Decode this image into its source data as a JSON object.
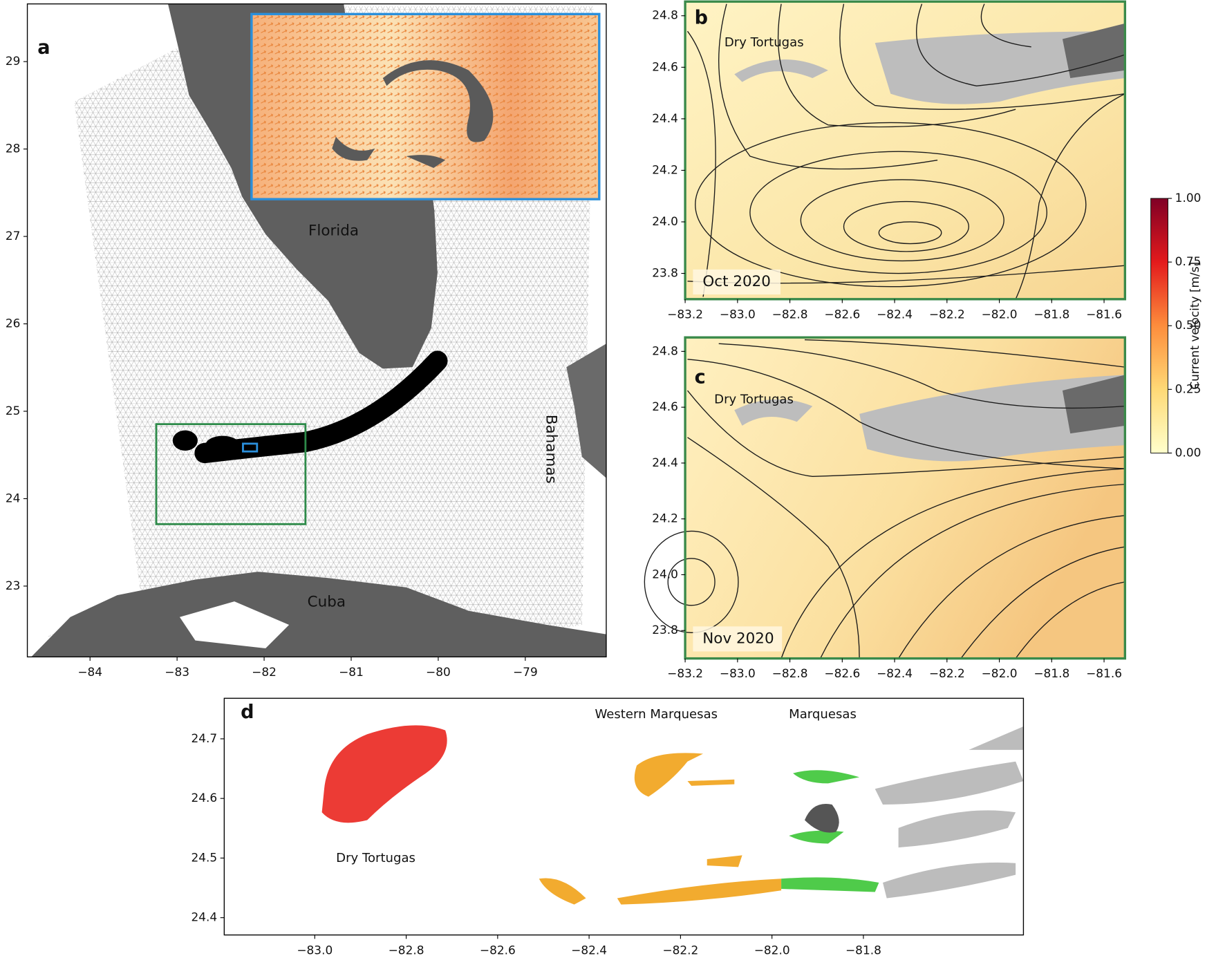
{
  "panels": [
    {
      "label": "a",
      "xlim": [
        -84.72,
        -78.07
      ],
      "ylim": [
        22.19,
        29.66
      ],
      "xticks": [
        {
          "value": -84,
          "label": "−84"
        },
        {
          "value": -83,
          "label": "−83"
        },
        {
          "value": -82,
          "label": "−82"
        },
        {
          "value": -81,
          "label": "−81"
        },
        {
          "value": -80,
          "label": "−80"
        },
        {
          "value": -79,
          "label": "−79"
        }
      ],
      "yticks": [
        23,
        24,
        25,
        26,
        27,
        28,
        29
      ],
      "places": [
        "Florida",
        "Cuba",
        "Bahamas"
      ]
    },
    {
      "label": "b",
      "xlim": [
        -83.2,
        -81.52
      ],
      "ylim": [
        23.7,
        24.855
      ],
      "xticks": [
        {
          "value": -83.2,
          "label": "−83.2"
        },
        {
          "value": -83.0,
          "label": "−83.0"
        },
        {
          "value": -82.8,
          "label": "−82.8"
        },
        {
          "value": -82.6,
          "label": "−82.6"
        },
        {
          "value": -82.4,
          "label": "−82.4"
        },
        {
          "value": -82.2,
          "label": "−82.2"
        },
        {
          "value": -82.0,
          "label": "−82.0"
        },
        {
          "value": -81.8,
          "label": "−81.8"
        },
        {
          "value": -81.6,
          "label": "−81.6"
        }
      ],
      "yticks": [
        24.8,
        24.6,
        24.4,
        24.2,
        {
          "value": 24.0,
          "label": "24.0"
        },
        23.8
      ],
      "places": [
        "Dry Tortugas"
      ],
      "period": "Oct 2020"
    },
    {
      "label": "c",
      "xlim": [
        -83.2,
        -81.52
      ],
      "ylim": [
        23.7,
        24.85
      ],
      "xticks": [
        {
          "value": -83.2,
          "label": "−83.2"
        },
        {
          "value": -83.0,
          "label": "−83.0"
        },
        {
          "value": -82.8,
          "label": "−82.8"
        },
        {
          "value": -82.6,
          "label": "−82.6"
        },
        {
          "value": -82.4,
          "label": "−82.4"
        },
        {
          "value": -82.2,
          "label": "−82.2"
        },
        {
          "value": -82.0,
          "label": "−82.0"
        },
        {
          "value": -81.8,
          "label": "−81.8"
        },
        {
          "value": -81.6,
          "label": "−81.6"
        }
      ],
      "yticks": [
        24.8,
        24.6,
        24.4,
        24.2,
        {
          "value": 24.0,
          "label": "24.0"
        },
        23.8
      ],
      "places": [
        "Dry Tortugas"
      ],
      "period": "Nov 2020"
    },
    {
      "label": "d",
      "xlim": [
        -83.198,
        -81.45
      ],
      "ylim": [
        24.371,
        24.768
      ],
      "xticks": [
        {
          "value": -83.0,
          "label": "−83.0"
        },
        {
          "value": -82.8,
          "label": "−82.8"
        },
        {
          "value": -82.6,
          "label": "−82.6"
        },
        {
          "value": -82.4,
          "label": "−82.4"
        },
        {
          "value": -82.2,
          "label": "−82.2"
        },
        {
          "value": -82.0,
          "label": "−82.0"
        },
        {
          "value": -81.8,
          "label": "−81.8"
        }
      ],
      "yticks": [
        24.7,
        24.6,
        24.5,
        24.4
      ],
      "places": [
        "Western Marquesas",
        "Marquesas",
        "Dry Tortugas"
      ]
    }
  ],
  "colorbar": {
    "label": "Current velocity [m/s]",
    "lim": [
      0,
      1
    ],
    "ticks": [
      {
        "value": 0,
        "label": "0.00"
      },
      {
        "value": 0.25,
        "label": "0.25"
      },
      {
        "value": 0.5,
        "label": "0.50"
      },
      {
        "value": 0.75,
        "label": "0.75"
      },
      {
        "value": 1,
        "label": "1.00"
      }
    ]
  }
}
